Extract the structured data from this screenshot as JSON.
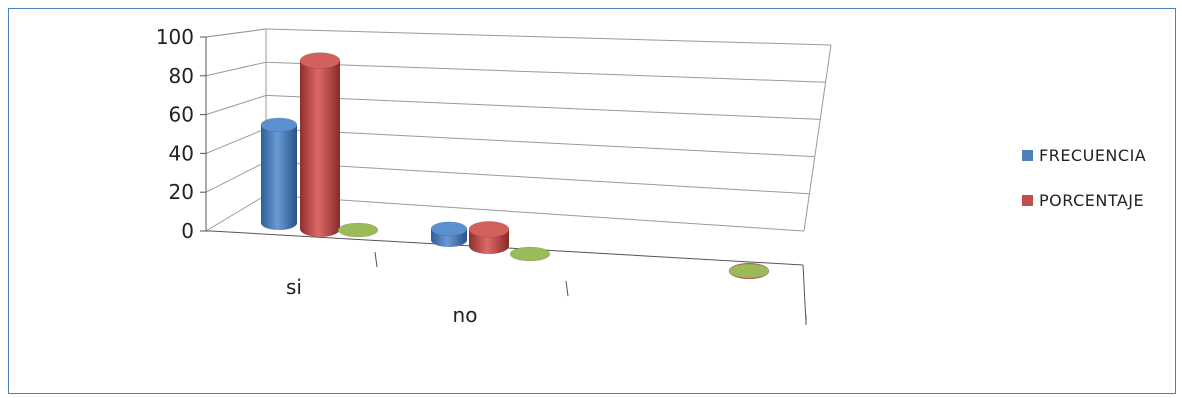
{
  "chart_data": {
    "type": "bar",
    "title": "",
    "xlabel": "",
    "ylabel": "",
    "categories": [
      "si",
      "no",
      ""
    ],
    "series": [
      {
        "name": "FRECUENCIA",
        "values": [
          53,
          6,
          0
        ],
        "color": "#4f81bd"
      },
      {
        "name": "PORCENTAJE",
        "values": [
          91,
          9,
          0
        ],
        "color": "#c0504d"
      },
      {
        "name": "",
        "values": [
          0,
          0,
          0
        ],
        "color": "#9bbb59"
      }
    ],
    "ylim": [
      0,
      100
    ],
    "yticks": [
      0,
      20,
      40,
      60,
      80,
      100
    ],
    "grid": true,
    "legend": "right",
    "shape": "cylinder-3d"
  }
}
